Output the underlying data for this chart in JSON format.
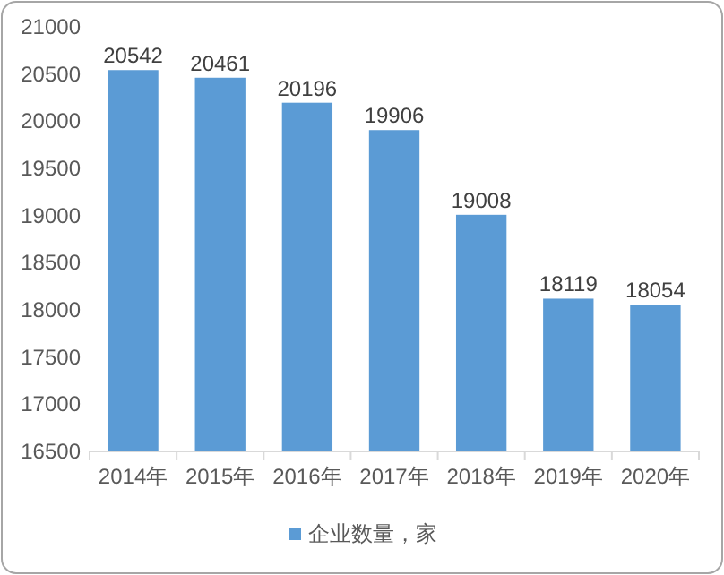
{
  "chart_data": {
    "type": "bar",
    "categories": [
      "2014年",
      "2015年",
      "2016年",
      "2017年",
      "2018年",
      "2019年",
      "2020年"
    ],
    "series": [
      {
        "name": "企业数量，家",
        "color": "#5b9bd5",
        "values": [
          20542,
          20461,
          20196,
          19906,
          19008,
          18119,
          18054
        ]
      }
    ],
    "ylim": [
      16500,
      21000
    ],
    "yticks": [
      16500,
      17000,
      17500,
      18000,
      18500,
      19000,
      19500,
      20000,
      20500,
      21000
    ],
    "data_labels": true,
    "legend": "bottom",
    "grid": false
  }
}
